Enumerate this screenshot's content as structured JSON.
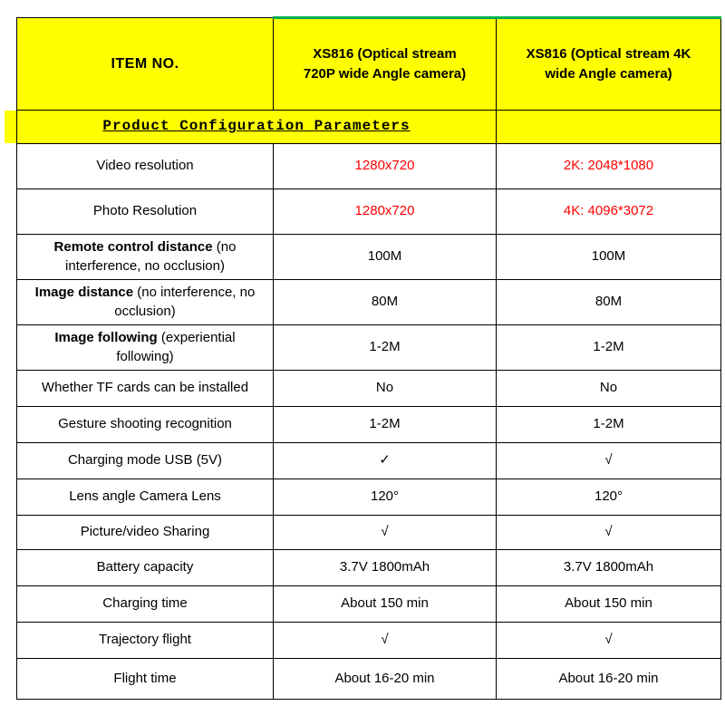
{
  "colors": {
    "header_bg": "#ffff00",
    "accent_green": "#00b050",
    "value_red": "#ff0000",
    "border": "#000000",
    "text": "#000000"
  },
  "table": {
    "header": {
      "item_no": "ITEM NO.",
      "model_720p": "XS816 (Optical stream 720P wide Angle camera)",
      "model_4k": "XS816 (Optical stream 4K wide Angle camera)"
    },
    "section_title": "Product Configuration Parameters",
    "rows": [
      {
        "label_bold": "",
        "label": "Video resolution",
        "v720": "1280x720",
        "v4k": "2K: 2048*1080",
        "value_color": "#ff0000"
      },
      {
        "label_bold": "",
        "label": "Photo Resolution",
        "v720": "1280x720",
        "v4k": "4K: 4096*3072",
        "value_color": "#ff0000"
      },
      {
        "label_bold": "Remote control distance",
        "label": " (no interference, no occlusion)",
        "v720": "100M",
        "v4k": "100M"
      },
      {
        "label_bold": "Image  distance",
        "label": " (no interference, no occlusion)",
        "v720": "80M",
        "v4k": "80M"
      },
      {
        "label_bold": "Image following",
        "label": " (experiential following)",
        "v720": "1-2M",
        "v4k": "1-2M"
      },
      {
        "label_bold": "",
        "label": "Whether TF cards can be installed",
        "v720": "No",
        "v4k": "No"
      },
      {
        "label_bold": "",
        "label": "Gesture shooting recognition",
        "v720": "1-2M",
        "v4k": "1-2M"
      },
      {
        "label_bold": "",
        "label": "Charging mode USB (5V)",
        "v720": "✓",
        "v4k": "√"
      },
      {
        "label_bold": "",
        "label": "Lens angle Camera Lens",
        "v720": "120°",
        "v4k": "120°"
      },
      {
        "label_bold": "",
        "label": "Picture/video Sharing",
        "v720": "√",
        "v4k": "√"
      },
      {
        "label_bold": "",
        "label": "Battery capacity",
        "v720": "3.7V 1800mAh",
        "v4k": "3.7V 1800mAh"
      },
      {
        "label_bold": "",
        "label": "Charging time",
        "v720": "About 150 min",
        "v4k": "About 150 min"
      },
      {
        "label_bold": "",
        "label": "Trajectory flight",
        "v720": "√",
        "v4k": "√"
      },
      {
        "label_bold": "",
        "label": "Flight time",
        "v720": "About 16-20 min",
        "v4k": "About 16-20 min"
      }
    ]
  }
}
